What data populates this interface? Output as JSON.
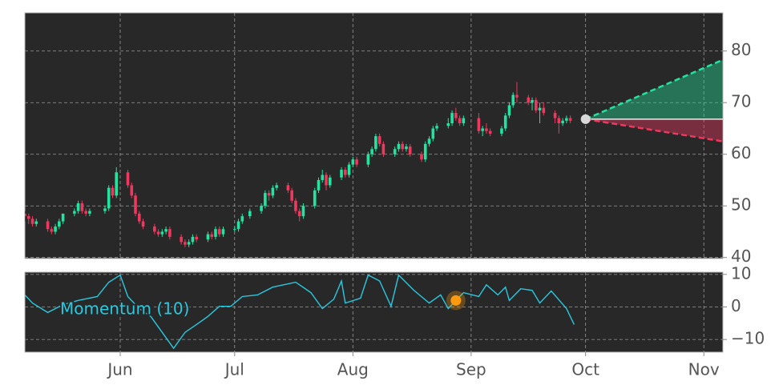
{
  "chart_data": [
    {
      "type": "candlestick",
      "x": [
        127,
        128,
        129,
        130,
        133,
        134,
        135,
        136,
        137,
        140,
        141,
        142,
        143,
        144,
        148,
        149,
        150,
        151,
        154,
        155,
        156,
        157,
        158,
        161,
        162,
        163,
        164,
        165,
        168,
        169,
        170,
        171,
        172,
        175,
        176,
        177,
        178,
        179,
        182,
        183,
        184,
        186,
        189,
        190,
        191,
        192,
        193,
        196,
        197,
        198,
        199,
        200,
        203,
        204,
        205,
        206,
        207,
        210,
        211,
        212,
        213,
        214,
        217,
        218,
        219,
        220,
        221,
        224,
        225,
        226,
        227,
        228,
        231,
        232,
        233,
        234,
        235,
        238,
        239,
        240,
        241,
        242,
        246,
        247,
        248,
        249,
        252,
        253,
        254,
        255,
        256,
        259,
        260,
        261,
        262,
        263,
        266,
        267,
        268,
        269,
        270
      ],
      "open": [
        48.5,
        48,
        47.5,
        46.5,
        47,
        45.5,
        45,
        46,
        47,
        48.5,
        49,
        50.5,
        49,
        48.5,
        49,
        49.5,
        53.5,
        52,
        56.5,
        54,
        52,
        48.5,
        47,
        46,
        45,
        44.5,
        45,
        45.5,
        44,
        43,
        42.5,
        43,
        44,
        43.5,
        44.5,
        44,
        45.5,
        44.5,
        45.5,
        45.5,
        47,
        48,
        49,
        50,
        52.5,
        52,
        53.5,
        54,
        53,
        51,
        49,
        48,
        50,
        53,
        55,
        56,
        54,
        55.5,
        57,
        56,
        58,
        59,
        58,
        60,
        61,
        63.5,
        62,
        60,
        61,
        62,
        61,
        61.5,
        60,
        59,
        62,
        63,
        65,
        65.5,
        66,
        68,
        67,
        66,
        67,
        64.5,
        65,
        64.5,
        64,
        65,
        67.5,
        69.5,
        71.5,
        71,
        70,
        70.5,
        68.5,
        69,
        68,
        67,
        66,
        66.5,
        67
      ],
      "high": [
        49,
        48.5,
        48,
        47.5,
        47.5,
        46,
        46.5,
        47.5,
        48.5,
        49.5,
        51,
        51,
        49.5,
        49.5,
        50,
        54,
        54,
        57.5,
        57,
        54.5,
        52.5,
        49,
        47.5,
        46.5,
        45.5,
        45.5,
        46,
        46,
        44.5,
        43.5,
        43.5,
        44.5,
        44.5,
        45,
        45,
        46,
        46,
        46,
        46,
        47.5,
        48.5,
        49.5,
        50.5,
        53,
        53,
        54,
        54.5,
        54.5,
        53.5,
        51.5,
        49.5,
        50.5,
        53.5,
        55.5,
        57,
        56.5,
        56,
        57.5,
        57.5,
        58.5,
        59.5,
        59.5,
        60.5,
        61.5,
        64,
        64,
        62.5,
        61.5,
        62.5,
        62.5,
        62,
        62,
        60.5,
        62.5,
        63.5,
        65.5,
        66,
        67,
        68.5,
        69,
        67.5,
        67.5,
        68,
        65.5,
        66,
        65,
        65.5,
        68,
        70,
        72,
        74,
        71.5,
        71,
        71,
        70,
        70,
        68.5,
        67.5,
        67,
        67.5,
        67.5
      ],
      "low": [
        47,
        46.5,
        46,
        46,
        45,
        44.5,
        44.5,
        45.5,
        46.5,
        48,
        48.5,
        48.5,
        48,
        48,
        48.5,
        49,
        51.5,
        51.5,
        53.5,
        51.5,
        48,
        46.5,
        45.5,
        44.5,
        44,
        44,
        44.5,
        43.5,
        42.5,
        42,
        42,
        42.5,
        43,
        43,
        43.5,
        43.5,
        44,
        44,
        45,
        45,
        46.5,
        47.5,
        48.5,
        49.5,
        51,
        51.5,
        53,
        52.5,
        50.5,
        48.5,
        47,
        47.5,
        49.5,
        52.5,
        54.5,
        53,
        53.5,
        55,
        55.5,
        55.5,
        57.5,
        57.5,
        57.5,
        59.5,
        60.5,
        61.5,
        59.5,
        59.5,
        60.5,
        60.5,
        60.5,
        59.5,
        58.5,
        58.5,
        61.5,
        62.5,
        64.5,
        65,
        65.5,
        66.5,
        65.5,
        65.5,
        64,
        63.5,
        64,
        63.5,
        63.5,
        64.5,
        67,
        69,
        70,
        69.5,
        68.5,
        68,
        66,
        67.5,
        66,
        64,
        65.5,
        66,
        66
      ],
      "close": [
        48,
        47.5,
        46.5,
        47,
        45.5,
        45,
        46,
        47,
        48.5,
        49,
        50.5,
        49,
        48.5,
        49,
        49.5,
        53.5,
        52,
        56.5,
        54,
        52,
        48.5,
        47,
        46,
        45,
        44.5,
        45,
        45.5,
        44,
        43,
        42.5,
        43,
        44,
        43.5,
        44.5,
        44,
        45.5,
        44.5,
        45.5,
        45.5,
        47,
        48,
        49,
        50,
        52.5,
        52,
        53.5,
        54,
        53,
        51,
        49,
        48,
        50,
        53,
        55,
        56,
        54,
        55.5,
        57,
        56,
        58,
        59,
        58,
        60,
        61,
        63.5,
        62,
        60,
        61,
        62,
        61,
        61.5,
        60,
        59,
        62,
        63,
        65,
        65.5,
        66,
        68,
        67,
        66,
        67,
        64.5,
        65,
        64.5,
        64,
        65,
        67.5,
        69.5,
        71.5,
        71,
        70,
        70.5,
        68.5,
        69,
        68,
        67,
        66,
        66.5,
        67,
        66.5
      ],
      "up_color": "#22e3a0",
      "down_color": "#f0385e",
      "forecast": {
        "x": [
          274,
          310
        ],
        "upper": [
          66.8,
          78.3
        ],
        "lower": [
          66.8,
          62.5
        ],
        "upper_color": "#22e3a0",
        "lower_color": "#f0385e",
        "marker_color": "#d9d9d9"
      },
      "xlim": [
        127,
        310
      ],
      "ylim": [
        39.8,
        87.4
      ],
      "yticks": [
        40,
        50,
        60,
        70,
        80
      ],
      "grid": true
    },
    {
      "type": "line",
      "x": [
        127,
        129,
        133,
        137,
        141,
        146,
        149,
        152,
        154,
        157,
        160,
        163,
        166,
        169,
        172,
        175,
        178,
        181,
        184,
        188,
        192,
        198,
        202,
        205,
        208,
        210,
        211,
        215,
        217,
        220,
        223,
        225,
        229,
        233,
        236,
        238,
        240,
        242,
        246,
        248,
        251,
        253,
        254,
        257,
        260,
        262,
        265,
        269,
        271
      ],
      "series": [
        {
          "name": "Momentum (10)",
          "color": "#29c9e0",
          "values": [
            3.7,
            1.2,
            -1.7,
            0.7,
            2,
            3.2,
            7.6,
            9.8,
            3.2,
            -0.5,
            -2.9,
            -7.8,
            -12.7,
            -7.8,
            -5.4,
            -2.9,
            0.2,
            0.2,
            3.2,
            3.7,
            6.1,
            7.6,
            4.4,
            -0.5,
            2.4,
            8,
            1.2,
            2.7,
            9.8,
            8,
            0.2,
            9.8,
            5.1,
            1.2,
            3.7,
            -0.5,
            2,
            4.4,
            3.2,
            6.8,
            3.7,
            6.1,
            2,
            5.6,
            5.1,
            1.2,
            4.9,
            -0.5,
            -5.4
          ]
        }
      ],
      "highlight": {
        "x": 240,
        "value": 2,
        "color": "#ff9a0d"
      },
      "xlim": [
        127,
        310
      ],
      "ylim": [
        -13.9,
        10.7
      ],
      "yticks": [
        {
          "value": -10,
          "label": "−10"
        },
        0,
        10
      ],
      "xticks": [
        {
          "value": 152,
          "label": "Jun"
        },
        {
          "value": 182,
          "label": "Jul"
        },
        {
          "value": 213,
          "label": "Aug"
        },
        {
          "value": 244,
          "label": "Sep"
        },
        {
          "value": 274,
          "label": "Oct"
        },
        {
          "value": 305,
          "label": "Nov"
        }
      ],
      "grid": true
    }
  ]
}
